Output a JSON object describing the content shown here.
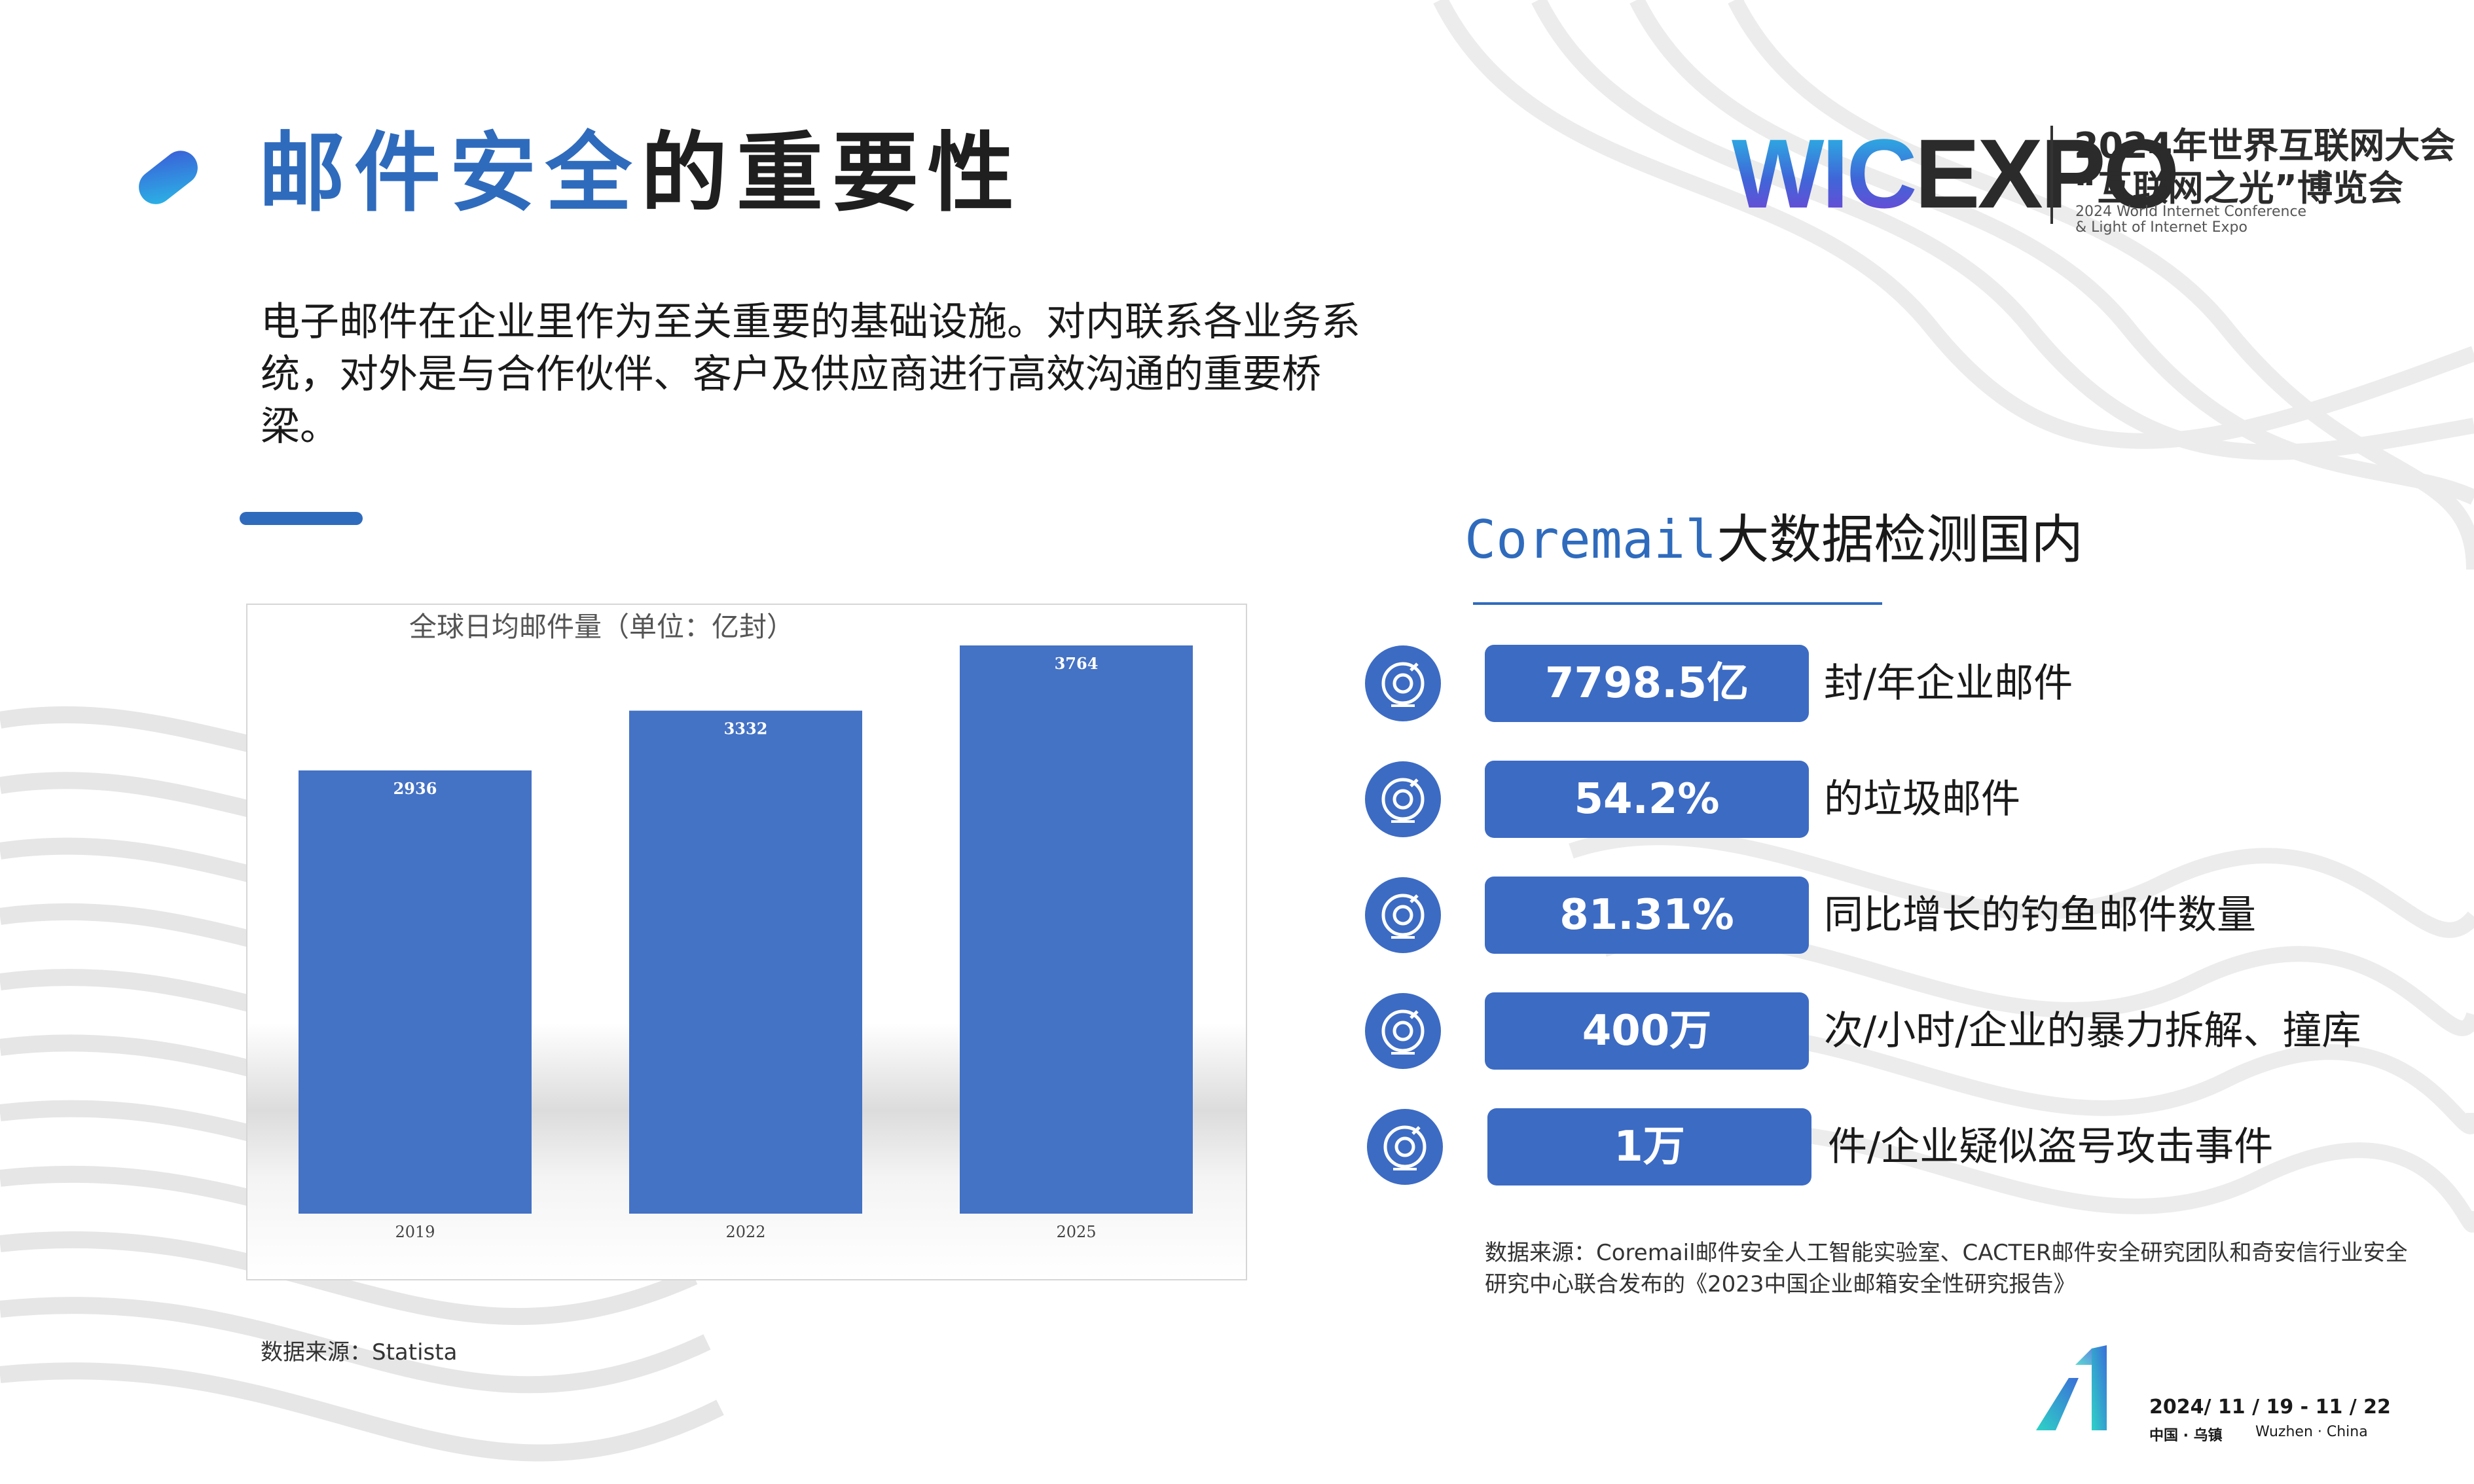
{
  "title": {
    "accent": "邮件安全",
    "rest": "的重要性"
  },
  "logo": {
    "wic": "WIC",
    "expo": "EXPO",
    "cn_line1": "2024年世界互联网大会",
    "cn_line2": "“互联网之光”博览会",
    "en_line1": "2024 World Internet Conference",
    "en_line2": "& Light of Internet Expo"
  },
  "intro": "电子邮件在企业里作为至关重要的基础设施。对内联系各业务系统，对外是与合作伙伴、客户及供应商进行高效沟通的重要桥梁。",
  "chart_data": {
    "type": "bar",
    "title": "全球日均邮件量（单位：亿封）",
    "categories": [
      "2019",
      "2022",
      "2025"
    ],
    "values": [
      2936,
      3332,
      3764
    ],
    "ylim": [
      0,
      3764
    ],
    "grid": false,
    "color": "#4472c4"
  },
  "chart_source": "数据来源：Statista",
  "right": {
    "heading_brand": "Coremail",
    "heading_rest": "大数据检测国内",
    "stats": [
      {
        "value": "7798.5亿",
        "desc": "封/年企业邮件",
        "icon": "target-icon"
      },
      {
        "value": "54.2%",
        "desc": "的垃圾邮件",
        "icon": "target-icon"
      },
      {
        "value": "81.31%",
        "desc": "同比增长的钓鱼邮件数量",
        "icon": "target-icon"
      },
      {
        "value": "400万",
        "desc": "次/小时/企业的暴力拆解、撞库",
        "icon": "target-icon"
      },
      {
        "value": "1万",
        "desc": "件/企业疑似盗号攻击事件",
        "icon": "target-icon"
      }
    ],
    "source": "数据来源：Coremail邮件安全人工智能实验室、CACTER邮件安全研究团队和奇安信行业安全研究中心联合发布的《2023中国企业邮箱安全性研究报告》"
  },
  "footer": {
    "date": "2024/ 11 / 19 - 11 / 22",
    "loc_cn": "中国 · 乌镇",
    "loc_en": "Wuzhen · China"
  },
  "colors": {
    "accent": "#2f6bbd",
    "stat_fill": "#3c6bc4",
    "bar": "#4472c4"
  }
}
